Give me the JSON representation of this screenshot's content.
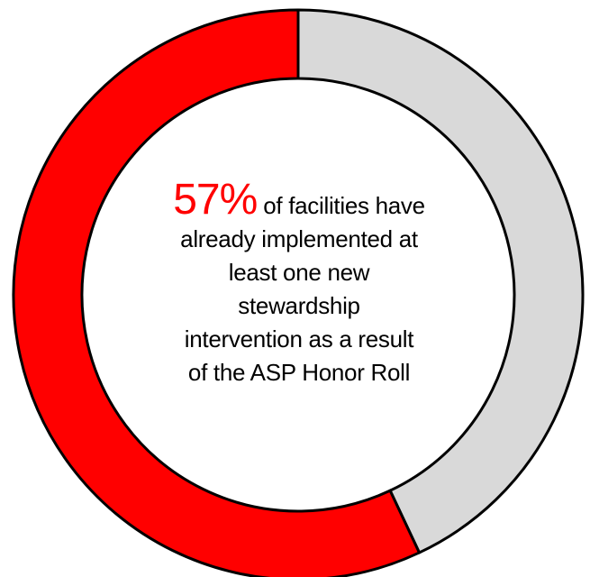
{
  "chart_data": {
    "type": "pie",
    "variant": "donut",
    "values": [
      57,
      43
    ],
    "colors": [
      "#ff0000",
      "#d9d9d9"
    ],
    "stroke_color": "#000000",
    "start_angle": "top, clockwise, highlighted segment drawn counter-clockwise from top"
  },
  "callout": {
    "percent": "57%",
    "percent_color": "#ff0000",
    "line1_rest": "of facilities have",
    "line2": "already implemented at",
    "line3": "least one new",
    "line4": "stewardship",
    "line5": "intervention as a result",
    "line6": "of the ASP Honor Roll"
  }
}
